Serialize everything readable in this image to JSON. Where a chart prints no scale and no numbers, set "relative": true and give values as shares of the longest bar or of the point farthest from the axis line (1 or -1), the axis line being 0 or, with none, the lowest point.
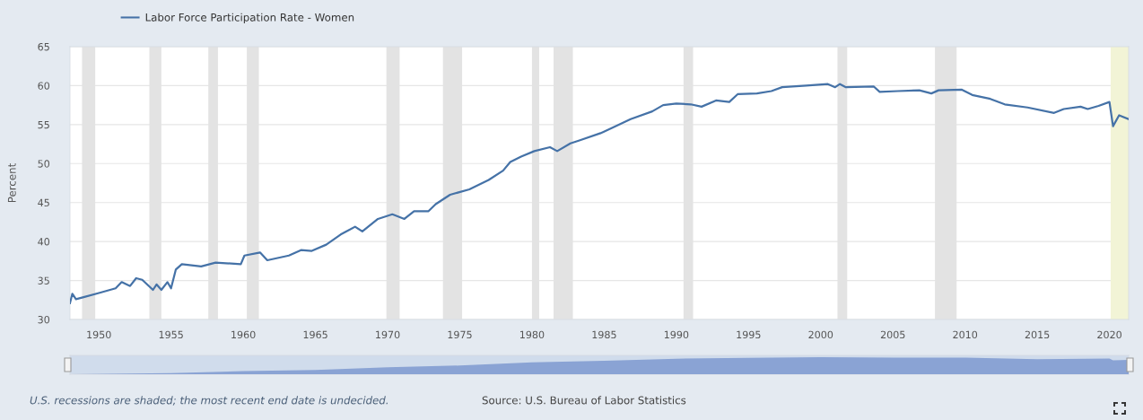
{
  "chart_data": [
    {
      "type": "line",
      "ylabel": "Percent",
      "annotations": [
        "U.S. recessions are shaded; the most recent end date is undecided.",
        "Source: U.S. Bureau of Labor Statistics"
      ],
      "series": [
        {
          "name": "Labor Force Participation Rate - Women",
          "color": "#4572a7",
          "x": [
            "1948-01",
            "1948-03",
            "1948-06",
            "1949-01",
            "1950-01",
            "1951-03",
            "1951-08",
            "1952-03",
            "1952-08",
            "1953-01",
            "1953-10",
            "1954-01",
            "1954-05",
            "1954-10",
            "1955-01",
            "1955-05",
            "1955-10",
            "1957-02",
            "1958-02",
            "1959-11",
            "1960-02",
            "1961-03",
            "1961-09",
            "1963-03",
            "1964-01",
            "1964-10",
            "1965-10",
            "1966-10",
            "1967-10",
            "1968-04",
            "1969-05",
            "1970-05",
            "1971-03",
            "1971-11",
            "1972-11",
            "1973-05",
            "1974-05",
            "1975-09",
            "1977-01",
            "1978-01",
            "1978-07",
            "1979-04",
            "1980-03",
            "1981-04",
            "1981-10",
            "1982-09",
            "1983-05",
            "1984-10",
            "1985-08",
            "1986-11",
            "1988-05",
            "1989-02",
            "1990-01",
            "1991-01",
            "1991-10",
            "1992-10",
            "1993-09",
            "1994-04",
            "1995-08",
            "1996-08",
            "1997-05",
            "1999-01",
            "2000-07",
            "2001-01",
            "2001-05",
            "2001-10",
            "2003-09",
            "2004-02",
            "2005-05",
            "2006-11",
            "2007-09",
            "2008-03",
            "2009-10",
            "2010-07",
            "2011-10",
            "2012-10",
            "2014-05",
            "2016-03",
            "2016-11",
            "2018-01",
            "2018-07",
            "2019-04",
            "2020-01",
            "2020-04",
            "2020-09",
            "2021-05"
          ],
          "values": [
            32.1,
            33.3,
            32.6,
            32.9,
            33.4,
            34.0,
            34.8,
            34.3,
            35.3,
            35.1,
            33.8,
            34.5,
            33.8,
            34.8,
            34.0,
            36.4,
            37.1,
            36.8,
            37.3,
            37.1,
            38.2,
            38.6,
            37.6,
            38.2,
            38.9,
            38.8,
            39.6,
            40.9,
            41.9,
            41.3,
            42.9,
            43.5,
            42.9,
            43.9,
            43.9,
            44.8,
            46.0,
            46.7,
            47.9,
            49.1,
            50.2,
            50.9,
            51.6,
            52.1,
            51.6,
            52.6,
            53.0,
            53.9,
            54.6,
            55.7,
            56.7,
            57.5,
            57.7,
            57.6,
            57.3,
            58.1,
            57.9,
            58.9,
            59.0,
            59.3,
            59.8,
            60.0,
            60.2,
            59.8,
            60.2,
            59.8,
            59.9,
            59.2,
            59.3,
            59.4,
            59.0,
            59.4,
            59.5,
            58.8,
            58.3,
            57.6,
            57.2,
            56.5,
            57.0,
            57.3,
            57.0,
            57.4,
            57.9,
            54.8,
            56.2,
            55.7
          ]
        }
      ],
      "xlim": [
        "1948-01",
        "2021-05"
      ],
      "xticks": [
        "1950",
        "1955",
        "1960",
        "1965",
        "1970",
        "1975",
        "1980",
        "1985",
        "1990",
        "1995",
        "2000",
        "2005",
        "2010",
        "2015",
        "2020"
      ],
      "ylim": [
        30,
        65
      ],
      "yticks": [
        30,
        35,
        40,
        45,
        50,
        55,
        60,
        65
      ],
      "bands": [
        {
          "axis": "x",
          "from": "1948-11",
          "to": "1949-10",
          "color": "#e3e3e3"
        },
        {
          "axis": "x",
          "from": "1953-07",
          "to": "1954-05",
          "color": "#e3e3e3"
        },
        {
          "axis": "x",
          "from": "1957-08",
          "to": "1958-04",
          "color": "#e3e3e3"
        },
        {
          "axis": "x",
          "from": "1960-04",
          "to": "1961-02",
          "color": "#e3e3e3"
        },
        {
          "axis": "x",
          "from": "1969-12",
          "to": "1970-11",
          "color": "#e3e3e3"
        },
        {
          "axis": "x",
          "from": "1973-11",
          "to": "1975-03",
          "color": "#e3e3e3"
        },
        {
          "axis": "x",
          "from": "1980-01",
          "to": "1980-07",
          "color": "#e3e3e3"
        },
        {
          "axis": "x",
          "from": "1981-07",
          "to": "1982-11",
          "color": "#e3e3e3"
        },
        {
          "axis": "x",
          "from": "1990-07",
          "to": "1991-03",
          "color": "#e3e3e3"
        },
        {
          "axis": "x",
          "from": "2001-03",
          "to": "2001-11",
          "color": "#e3e3e3"
        },
        {
          "axis": "x",
          "from": "2007-12",
          "to": "2009-06",
          "color": "#e3e3e3"
        },
        {
          "axis": "x",
          "from": "2020-02",
          "to": "2021-05",
          "color": "#f2f4d6"
        }
      ],
      "grid": "y",
      "legend": "top left"
    },
    {
      "type": "area",
      "relative": true,
      "x": [
        "1948-01",
        "1955-01",
        "1960-01",
        "1965-01",
        "1970-01",
        "1975-01",
        "1980-01",
        "1985-01",
        "1990-01",
        "1995-01",
        "2000-01",
        "2005-01",
        "2010-01",
        "2015-01",
        "2020-01",
        "2020-04",
        "2021-05"
      ],
      "values": [
        0.0,
        0.07,
        0.18,
        0.25,
        0.4,
        0.51,
        0.69,
        0.78,
        0.91,
        0.95,
        1.0,
        0.97,
        0.97,
        0.88,
        0.92,
        0.81,
        0.84
      ],
      "color": "#8aa3d4",
      "xlim": [
        "1948-01",
        "2021-05"
      ]
    }
  ]
}
